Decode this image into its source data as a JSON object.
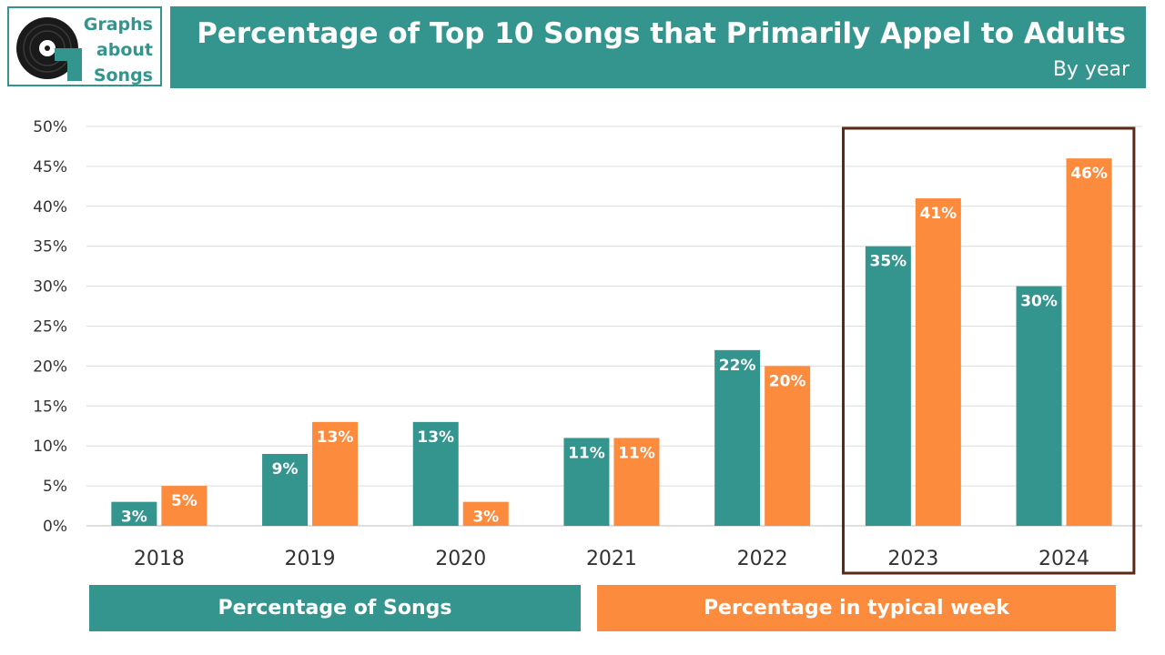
{
  "logo": {
    "line1": "Graphs",
    "line2": "about",
    "line3": "Songs",
    "icon": "vinyl-record-icon"
  },
  "header": {
    "title": "Percentage of Top 10 Songs that Primarily Appel to Adults",
    "subtitle": "By year"
  },
  "colors": {
    "teal": "#33958e",
    "orange": "#fc8b3d",
    "highlight": "#5a2a17"
  },
  "chart_data": {
    "type": "bar",
    "categories": [
      "2018",
      "2019",
      "2020",
      "2021",
      "2022",
      "2023",
      "2024"
    ],
    "series": [
      {
        "name": "Percentage of Songs",
        "values": [
          3,
          9,
          13,
          11,
          22,
          35,
          30
        ],
        "labels": [
          "3%",
          "9%",
          "13%",
          "11%",
          "22%",
          "35%",
          "30%"
        ]
      },
      {
        "name": "Percentage in typical week",
        "values": [
          5,
          13,
          3,
          11,
          20,
          41,
          46
        ],
        "labels": [
          "5%",
          "13%",
          "3%",
          "11%",
          "20%",
          "41%",
          "46%"
        ]
      }
    ],
    "ylim": [
      0,
      50
    ],
    "yticks": [
      "0%",
      "5%",
      "10%",
      "15%",
      "20%",
      "25%",
      "30%",
      "35%",
      "40%",
      "45%",
      "50%"
    ],
    "grid": true,
    "legend": "bottom",
    "highlighted_categories": [
      "2023",
      "2024"
    ]
  }
}
